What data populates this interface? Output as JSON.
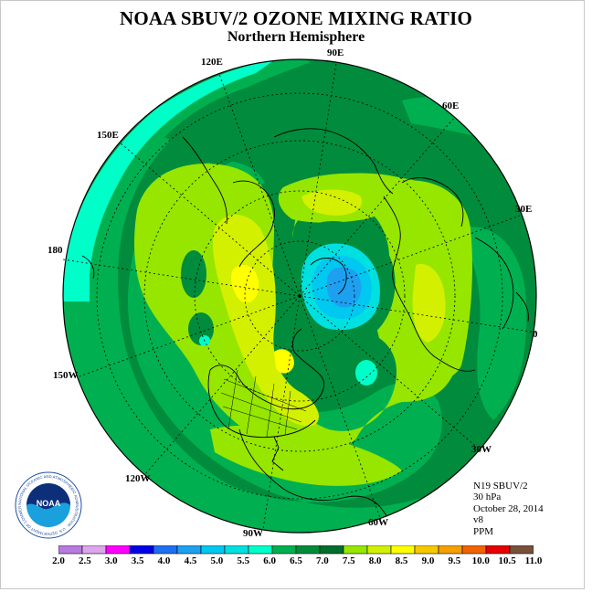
{
  "header": {
    "title": "NOAA SBUV/2 OZONE MIXING RATIO",
    "subtitle": "Northern Hemisphere"
  },
  "longitude_labels": [
    "90E",
    "60E",
    "30E",
    "0",
    "30W",
    "60W",
    "90W",
    "120W",
    "150W",
    "180",
    "150E",
    "120E"
  ],
  "info": {
    "instrument": "N19 SBUV/2",
    "level": "30 hPa",
    "date": "October 28, 2014",
    "version": "v8",
    "units": "PPM"
  },
  "colorbar": {
    "ticks": [
      "2.0",
      "2.5",
      "3.0",
      "3.5",
      "4.0",
      "4.5",
      "5.0",
      "5.5",
      "6.0",
      "6.5",
      "7.0",
      "7.5",
      "8.0",
      "8.5",
      "9.0",
      "9.5",
      "10.0",
      "10.5",
      "11.0"
    ],
    "colors": [
      "#b77be0",
      "#dca5ec",
      "#ff00ff",
      "#0000e6",
      "#1e70f0",
      "#1ea0f0",
      "#00c8f0",
      "#00e0e0",
      "#00ffc8",
      "#00b050",
      "#008c3c",
      "#006e2e",
      "#96e600",
      "#d2f000",
      "#ffff00",
      "#f5c800",
      "#f5a000",
      "#f06400",
      "#e60000",
      "#78503c"
    ]
  },
  "logo": {
    "text": "NOAA",
    "ring_text": "NATIONAL OCEANIC AND ATMOSPHERIC ADMINISTRATION · U.S. DEPARTMENT OF COMMERCE"
  }
}
